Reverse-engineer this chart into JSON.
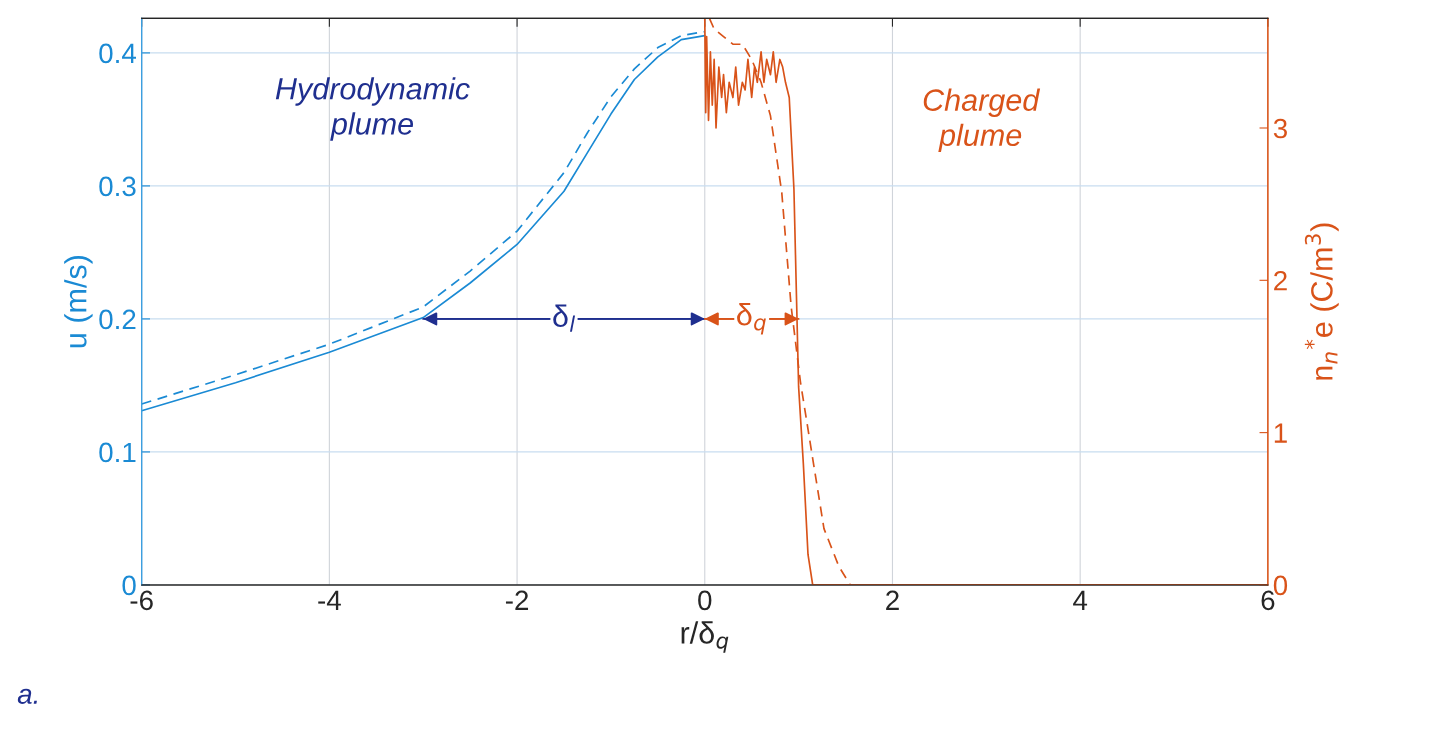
{
  "chart_data": {
    "type": "line",
    "xlabel": "r/δ$_{q}$",
    "ylabel": "u (m/s)",
    "y2label": "n$_{n}$$^{*}$e (C/m$^{3}$)",
    "xlim": [
      -6,
      6
    ],
    "xticks": [
      -6,
      -4,
      -2,
      0,
      2,
      4,
      6
    ],
    "ylim": [
      0,
      0.426
    ],
    "yticks": [
      0,
      0.1,
      0.2,
      0.3,
      0.4
    ],
    "y2lim": [
      0,
      3.72
    ],
    "y2ticks": [
      0,
      1,
      2,
      3
    ],
    "grid": true,
    "marker": "none",
    "series": [
      {
        "color": "#1a8ad4",
        "line_style": "solid",
        "x": [
          -6,
          -5,
          -4,
          -3,
          -2.5,
          -2,
          -1.5,
          -1.25,
          -1,
          -0.75,
          -0.5,
          -0.25,
          0
        ],
        "values": [
          0.131,
          0.152,
          0.175,
          0.201,
          0.227,
          0.256,
          0.296,
          0.325,
          0.354,
          0.38,
          0.397,
          0.41,
          0.413
        ]
      },
      {
        "color": "#1a8ad4",
        "line_style": "dashed",
        "x": [
          -6,
          -5,
          -4,
          -3,
          -2.5,
          -2,
          -1.5,
          -1.25,
          -1,
          -0.75,
          -0.5,
          -0.25,
          0
        ],
        "values": [
          0.136,
          0.158,
          0.181,
          0.209,
          0.236,
          0.266,
          0.31,
          0.34,
          0.367,
          0.388,
          0.404,
          0.413,
          0.416
        ]
      },
      {
        "color": "#d95319",
        "line_style": "solid",
        "axis": "y2",
        "x": [
          0,
          0.01,
          0.02,
          0.04,
          0.06,
          0.08,
          0.1,
          0.12,
          0.15,
          0.18,
          0.2,
          0.23,
          0.26,
          0.3,
          0.33,
          0.36,
          0.4,
          0.43,
          0.46,
          0.5,
          0.53,
          0.56,
          0.6,
          0.63,
          0.66,
          0.7,
          0.73,
          0.76,
          0.8,
          0.83,
          0.86,
          0.9,
          0.95,
          1.0,
          1.05,
          1.1,
          1.15,
          6
        ],
        "values": [
          3.72,
          3.1,
          3.6,
          3.05,
          3.5,
          3.15,
          3.45,
          3.0,
          3.4,
          3.2,
          3.35,
          3.1,
          3.3,
          3.2,
          3.4,
          3.15,
          3.3,
          3.25,
          3.45,
          3.2,
          3.4,
          3.3,
          3.5,
          3.3,
          3.45,
          3.35,
          3.5,
          3.3,
          3.45,
          3.4,
          3.3,
          3.2,
          2.6,
          1.3,
          0.8,
          0.2,
          0,
          0
        ]
      },
      {
        "color": "#d95319",
        "line_style": "dashed",
        "axis": "y2",
        "x": [
          0.05,
          0.1,
          0.2,
          0.3,
          0.4,
          0.5,
          0.6,
          0.7,
          0.82,
          0.92,
          1.02,
          1.15,
          1.27,
          1.43,
          1.55,
          6
        ],
        "values": [
          3.72,
          3.65,
          3.6,
          3.55,
          3.55,
          3.45,
          3.3,
          3.08,
          2.58,
          1.83,
          1.33,
          0.83,
          0.37,
          0.12,
          0,
          0
        ]
      },
      {
        "color": "#1f2f8f",
        "line_style": "solid",
        "x": [
          -3,
          0
        ],
        "values": [
          0.2,
          0.2
        ]
      },
      {
        "color": "#d95319",
        "line_style": "solid",
        "x": [
          0,
          1
        ],
        "values": [
          0.2,
          0.2
        ]
      }
    ],
    "annotations": [
      {
        "text": "δ$_{l}$",
        "x": -1.5,
        "y": 0.2
      },
      {
        "text": "δ$_{q}$",
        "x": 0.5,
        "y": 0.2
      },
      "Hydrodynamic\nplume",
      "Charged\nplume",
      "a."
    ]
  }
}
